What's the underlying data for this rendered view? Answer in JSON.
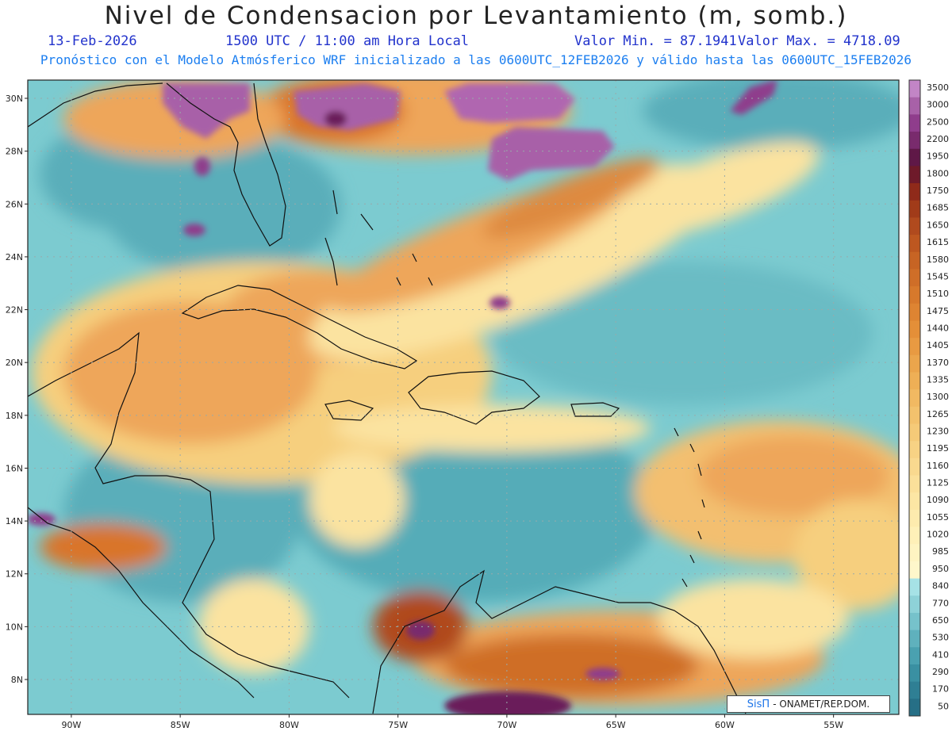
{
  "header": {
    "title": "Nivel de Condensacion por Levantamiento (m, somb.)",
    "date": "13-Feb-2026",
    "time": "1500 UTC / 11:00 am Hora Local",
    "min_label": "Valor Min. = 87.1941",
    "max_label": "Valor Max. = 4718.09",
    "info": "Pronóstico con el Modelo Atmósferico WRF inicializado a las 0600UTC_12FEB2026 y válido hasta las  0600UTC_15FEB2026"
  },
  "map": {
    "lat_labels": [
      "30N",
      "28N",
      "26N",
      "24N",
      "22N",
      "20N",
      "18N",
      "16N",
      "14N",
      "12N",
      "10N",
      "8N"
    ],
    "lon_labels": [
      "90W",
      "85W",
      "80W",
      "75W",
      "70W",
      "65W",
      "60W",
      "55W"
    ],
    "lat_values": [
      30,
      28,
      26,
      24,
      22,
      20,
      18,
      16,
      14,
      12,
      10,
      8
    ],
    "lon_values": [
      -90,
      -85,
      -80,
      -75,
      -70,
      -65,
      -60,
      -55
    ],
    "grid": "dotted",
    "colors": {
      "low": "#3f9aa8",
      "mid_low": "#6cc0c8",
      "light": "#9fdde2",
      "yellow": "#fde8a0",
      "orange": "#f1a95a",
      "dark_orange": "#d9742a",
      "brown": "#a0411c",
      "purple": "#b066b0",
      "dark_purple": "#6a1e5a"
    }
  },
  "colorbar": {
    "labels": [
      "3500",
      "3000",
      "2500",
      "2200",
      "1950",
      "1800",
      "1750",
      "1685",
      "1650",
      "1615",
      "1580",
      "1545",
      "1510",
      "1475",
      "1440",
      "1405",
      "1370",
      "1335",
      "1300",
      "1265",
      "1230",
      "1195",
      "1160",
      "1125",
      "1090",
      "1055",
      "1020",
      "985",
      "950",
      "840",
      "770",
      "650",
      "530",
      "410",
      "290",
      "170",
      "50"
    ],
    "colors": [
      "#c285c6",
      "#a861a8",
      "#8f3d8c",
      "#792b6d",
      "#5f1847",
      "#6e1a2a",
      "#8f2a1a",
      "#a13b19",
      "#b04a1e",
      "#bd5720",
      "#c76424",
      "#cf6e28",
      "#d7792c",
      "#de8432",
      "#e48f38",
      "#e89a42",
      "#eba54c",
      "#eeaf56",
      "#f1b962",
      "#f3c26d",
      "#f5ca78",
      "#f7d284",
      "#f9d98f",
      "#fbe09a",
      "#fce6a4",
      "#fdebae",
      "#fef0b8",
      "#fef4c2",
      "#fef7cb",
      "#a6e2e6",
      "#8ed2d8",
      "#76c2cb",
      "#5fb1bd",
      "#4aa1b0",
      "#3a90a2",
      "#2f7f94",
      "#266f86"
    ]
  },
  "credit": {
    "brand": "SisΠ",
    "text": "- ONAMET/REP.DOM."
  }
}
